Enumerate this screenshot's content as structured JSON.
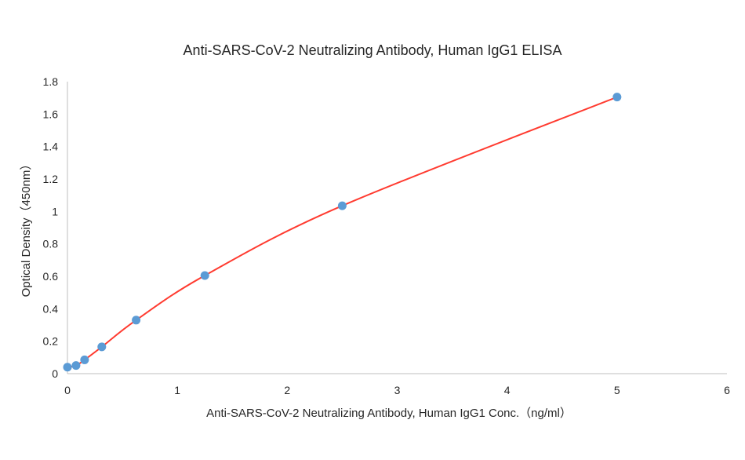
{
  "chart_data": {
    "type": "scatter",
    "title": "Anti-SARS-CoV-2 Neutralizing Antibody, Human IgG1 ELISA",
    "xlabel": "Anti-SARS-CoV-2 Neutralizing Antibody, Human IgG1 Conc.（ng/ml）",
    "ylabel": "Optical Density（450nm）",
    "xlim": [
      0,
      6
    ],
    "ylim": [
      0,
      1.8
    ],
    "x_ticks": [
      "0",
      "1",
      "2",
      "3",
      "4",
      "5",
      "6"
    ],
    "y_ticks": [
      "0",
      "0.2",
      "0.4",
      "0.6",
      "0.8",
      "1",
      "1.2",
      "1.4",
      "1.6",
      "1.8"
    ],
    "grid": false,
    "series": [
      {
        "x": [
          0,
          0.078,
          0.156,
          0.3125,
          0.625,
          1.25,
          2.5,
          5
        ],
        "y": [
          0.04,
          0.05,
          0.085,
          0.165,
          0.33,
          0.605,
          1.035,
          1.705
        ],
        "marker_color": "#5b9bd5",
        "fit_line": true,
        "fit_color": "#ff3b30"
      }
    ]
  }
}
